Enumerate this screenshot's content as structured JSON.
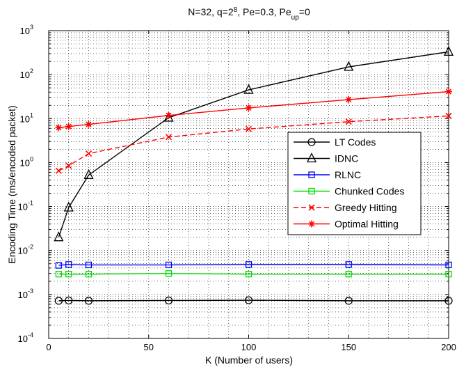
{
  "chart_data": {
    "type": "line",
    "title": {
      "base": "N=32, q=2",
      "q_exp": "8",
      "mid": ", Pe=0.3, Pe",
      "sub": "up",
      "end": "=0"
    },
    "xlabel": "K (Number of users)",
    "ylabel": "Encoding Time (ms/encoded packet)",
    "xlim": [
      0,
      200
    ],
    "ylim_log10": [
      -4,
      3
    ],
    "yscale": "log",
    "grid": true,
    "legend_position": "right",
    "x_ticks": [
      0,
      50,
      100,
      150,
      200
    ],
    "y_tick_exponents": [
      -4,
      -3,
      -2,
      -1,
      0,
      1,
      2,
      3
    ],
    "y_tick_base": "10",
    "series": [
      {
        "name": "LT Codes",
        "color": "#000000",
        "marker": "circle",
        "dash": false,
        "x": [
          5,
          10,
          20,
          60,
          100,
          150,
          200
        ],
        "y": [
          0.00072,
          0.00073,
          0.00072,
          0.00073,
          0.00074,
          0.00072,
          0.00072
        ]
      },
      {
        "name": "IDNC",
        "color": "#000000",
        "marker": "triangle",
        "dash": false,
        "x": [
          5,
          10,
          20,
          60,
          100,
          150,
          200
        ],
        "y": [
          0.02,
          0.095,
          0.52,
          10.5,
          45,
          150,
          330
        ]
      },
      {
        "name": "RLNC",
        "color": "#0000ff",
        "marker": "square",
        "dash": false,
        "x": [
          5,
          10,
          20,
          60,
          100,
          150,
          200
        ],
        "y": [
          0.0046,
          0.0048,
          0.0047,
          0.0047,
          0.0048,
          0.0048,
          0.0047
        ]
      },
      {
        "name": "Chunked Codes",
        "color": "#00dd00",
        "marker": "square",
        "dash": false,
        "x": [
          5,
          10,
          20,
          60,
          100,
          150,
          200
        ],
        "y": [
          0.0029,
          0.0029,
          0.0029,
          0.003,
          0.0029,
          0.0029,
          0.0029
        ]
      },
      {
        "name": "Greedy Hitting",
        "color": "#ff0000",
        "marker": "x",
        "dash": true,
        "x": [
          5,
          10,
          20,
          60,
          100,
          150,
          200
        ],
        "y": [
          0.65,
          0.85,
          1.6,
          3.8,
          5.8,
          8.5,
          11.5
        ]
      },
      {
        "name": "Optimal Hitting",
        "color": "#ff0000",
        "marker": "star",
        "dash": false,
        "x": [
          5,
          10,
          20,
          60,
          100,
          150,
          200
        ],
        "y": [
          6.2,
          6.6,
          7.4,
          11.8,
          17.5,
          27,
          41
        ]
      }
    ]
  }
}
